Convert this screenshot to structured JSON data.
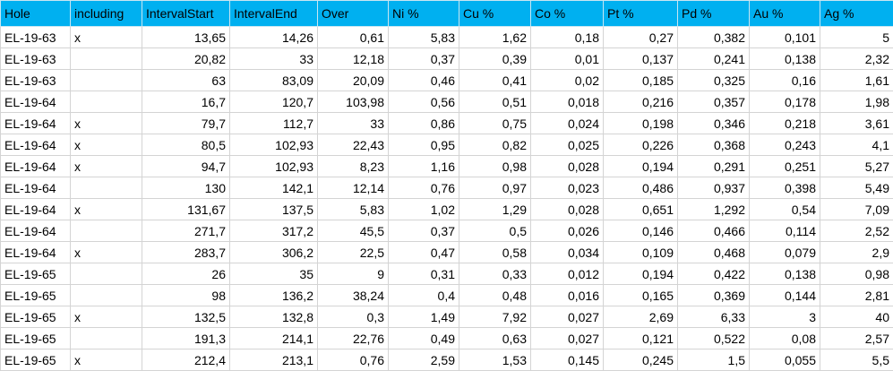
{
  "table": {
    "header": [
      "Hole",
      "including",
      "IntervalStart",
      "IntervalEnd",
      "Over",
      "Ni %",
      "Cu %",
      "Co %",
      "Pt %",
      "Pd %",
      "Au %",
      "Ag %"
    ],
    "rows": [
      [
        "EL-19-63",
        "x",
        "13,65",
        "14,26",
        "0,61",
        "5,83",
        "1,62",
        "0,18",
        "0,27",
        "0,382",
        "0,101",
        "5"
      ],
      [
        "EL-19-63",
        null,
        "20,82",
        "33",
        "12,18",
        "0,37",
        "0,39",
        "0,01",
        "0,137",
        "0,241",
        "0,138",
        "2,32"
      ],
      [
        "EL-19-63",
        null,
        "63",
        "83,09",
        "20,09",
        "0,46",
        "0,41",
        "0,02",
        "0,185",
        "0,325",
        "0,16",
        "1,61"
      ],
      [
        "EL-19-64",
        null,
        "16,7",
        "120,7",
        "103,98",
        "0,56",
        "0,51",
        "0,018",
        "0,216",
        "0,357",
        "0,178",
        "1,98"
      ],
      [
        "EL-19-64",
        "x",
        "79,7",
        "112,7",
        "33",
        "0,86",
        "0,75",
        "0,024",
        "0,198",
        "0,346",
        "0,218",
        "3,61"
      ],
      [
        "EL-19-64",
        "x",
        "80,5",
        "102,93",
        "22,43",
        "0,95",
        "0,82",
        "0,025",
        "0,226",
        "0,368",
        "0,243",
        "4,1"
      ],
      [
        "EL-19-64",
        "x",
        "94,7",
        "102,93",
        "8,23",
        "1,16",
        "0,98",
        "0,028",
        "0,194",
        "0,291",
        "0,251",
        "5,27"
      ],
      [
        "EL-19-64",
        null,
        "130",
        "142,1",
        "12,14",
        "0,76",
        "0,97",
        "0,023",
        "0,486",
        "0,937",
        "0,398",
        "5,49"
      ],
      [
        "EL-19-64",
        "x",
        "131,67",
        "137,5",
        "5,83",
        "1,02",
        "1,29",
        "0,028",
        "0,651",
        "1,292",
        "0,54",
        "7,09"
      ],
      [
        "EL-19-64",
        null,
        "271,7",
        "317,2",
        "45,5",
        "0,37",
        "0,5",
        "0,026",
        "0,146",
        "0,466",
        "0,114",
        "2,52"
      ],
      [
        "EL-19-64",
        "x",
        "283,7",
        "306,2",
        "22,5",
        "0,47",
        "0,58",
        "0,034",
        "0,109",
        "0,468",
        "0,079",
        "2,9"
      ],
      [
        "EL-19-65",
        null,
        "26",
        "35",
        "9",
        "0,31",
        "0,33",
        "0,012",
        "0,194",
        "0,422",
        "0,138",
        "0,98"
      ],
      [
        "EL-19-65",
        null,
        "98",
        "136,2",
        "38,24",
        "0,4",
        "0,48",
        "0,016",
        "0,165",
        "0,369",
        "0,144",
        "2,81"
      ],
      [
        "EL-19-65",
        "x",
        "132,5",
        "132,8",
        "0,3",
        "1,49",
        "7,92",
        "0,027",
        "2,69",
        "6,33",
        "3",
        "40"
      ],
      [
        "EL-19-65",
        null,
        "191,3",
        "214,1",
        "22,76",
        "0,49",
        "0,63",
        "0,027",
        "0,121",
        "0,522",
        "0,08",
        "2,57"
      ],
      [
        "EL-19-65",
        "x",
        "212,4",
        "213,1",
        "0,76",
        "2,59",
        "1,53",
        "0,145",
        "0,245",
        "1,5",
        "0,055",
        "5,5"
      ]
    ]
  }
}
